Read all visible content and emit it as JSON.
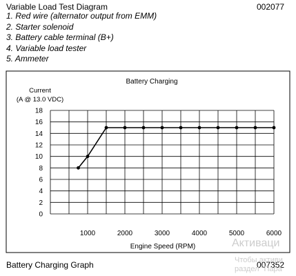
{
  "document": {
    "title": "Variable Load Test Diagram",
    "code_top": "002077",
    "legend": [
      "1. Red wire (alternator output from EMM)",
      "2. Starter solenoid",
      "3. Battery cable terminal (B+)",
      "4. Variable load tester",
      "5. Ammeter"
    ],
    "caption": "Battery Charging Graph",
    "code_bottom": "007352"
  },
  "watermark": {
    "line1": "Активаци",
    "line2": "Чтобы активи",
    "line3": "раздел \"Пара"
  },
  "chart_data": {
    "type": "line",
    "title": "Battery Charging",
    "ylabel_line1": "Current",
    "ylabel_line2": "(A @ 13.0 VDC)",
    "xlabel": "Engine Speed (RPM)",
    "xlim": [
      0,
      6000
    ],
    "ylim": [
      0,
      18
    ],
    "xticks": [
      1000,
      2000,
      3000,
      4000,
      5000,
      6000
    ],
    "yticks": [
      0,
      2,
      4,
      6,
      8,
      10,
      12,
      14,
      16,
      18
    ],
    "x_grid_step": 500,
    "y_grid_step": 2,
    "grid": true,
    "series": [
      {
        "x": [
          750,
          1000,
          1500,
          2000,
          2500,
          3000,
          3500,
          4000,
          4500,
          5000,
          5500,
          6000
        ],
        "y": [
          8,
          10,
          15,
          15,
          15,
          15,
          15,
          15,
          15,
          15,
          15,
          15
        ]
      }
    ]
  }
}
